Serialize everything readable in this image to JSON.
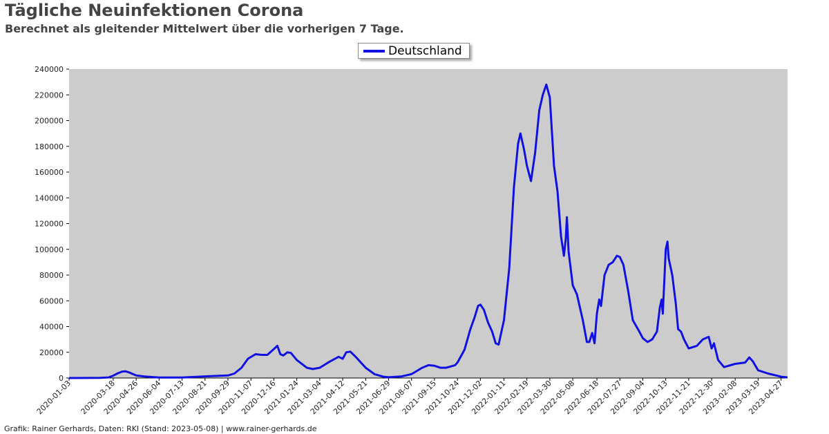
{
  "header": {
    "title": "Tägliche Neuinfektionen Corona",
    "subtitle": "Berechnet als gleitender Mittelwert über die vorherigen 7 Tage."
  },
  "footer": {
    "credit": "Grafik: Rainer Gerhards, Daten: RKI (Stand: 2023-05-08) | www.rainer-gerhards.de"
  },
  "chart_data": {
    "type": "line",
    "title": "Tägliche Neuinfektionen Corona",
    "subtitle": "Berechnet als gleitender Mittelwert über die vorherigen 7 Tage.",
    "xlabel": "",
    "ylabel": "",
    "ylim": [
      0,
      240000
    ],
    "xlim": [
      "2020-01-03",
      "2023-05-08"
    ],
    "grid": false,
    "legend_position": "top-center",
    "plot_background": "#cccccc",
    "y_ticks": [
      "0",
      "20000",
      "40000",
      "60000",
      "80000",
      "100000",
      "120000",
      "140000",
      "160000",
      "180000",
      "200000",
      "220000",
      "240000"
    ],
    "x_ticks": [
      "2020-01-03",
      "2020-03-18",
      "2020-04-26",
      "2020-06-04",
      "2020-07-13",
      "2020-08-21",
      "2020-09-29",
      "2020-11-07",
      "2020-12-16",
      "2021-01-24",
      "2021-03-04",
      "2021-04-12",
      "2021-05-21",
      "2021-06-29",
      "2021-08-07",
      "2021-09-15",
      "2021-10-24",
      "2021-12-02",
      "2022-01-11",
      "2022-02-19",
      "2022-03-30",
      "2022-05-08",
      "2022-06-18",
      "2022-07-27",
      "2022-09-04",
      "2022-10-13",
      "2022-11-21",
      "2022-12-30",
      "2023-02-08",
      "2023-03-19",
      "2023-04-27"
    ],
    "series": [
      {
        "name": "Deutschland",
        "color": "#1010e0",
        "points": [
          [
            "2020-01-03",
            0
          ],
          [
            "2020-02-25",
            100
          ],
          [
            "2020-03-10",
            500
          ],
          [
            "2020-03-18",
            1800
          ],
          [
            "2020-03-25",
            3500
          ],
          [
            "2020-04-02",
            5000
          ],
          [
            "2020-04-08",
            5200
          ],
          [
            "2020-04-15",
            4200
          ],
          [
            "2020-04-26",
            2000
          ],
          [
            "2020-05-10",
            1200
          ],
          [
            "2020-06-04",
            400
          ],
          [
            "2020-07-13",
            400
          ],
          [
            "2020-08-21",
            1300
          ],
          [
            "2020-09-29",
            2000
          ],
          [
            "2020-10-10",
            3500
          ],
          [
            "2020-10-22",
            8000
          ],
          [
            "2020-11-02",
            15000
          ],
          [
            "2020-11-15",
            18500
          ],
          [
            "2020-11-25",
            18000
          ],
          [
            "2020-12-05",
            18000
          ],
          [
            "2020-12-16",
            22500
          ],
          [
            "2020-12-22",
            25000
          ],
          [
            "2020-12-27",
            18500
          ],
          [
            "2021-01-01",
            17500
          ],
          [
            "2021-01-08",
            20000
          ],
          [
            "2021-01-14",
            19500
          ],
          [
            "2021-01-24",
            14000
          ],
          [
            "2021-02-10",
            8000
          ],
          [
            "2021-02-20",
            7000
          ],
          [
            "2021-03-04",
            8000
          ],
          [
            "2021-03-20",
            12500
          ],
          [
            "2021-04-05",
            16500
          ],
          [
            "2021-04-12",
            15000
          ],
          [
            "2021-04-18",
            20000
          ],
          [
            "2021-04-25",
            20500
          ],
          [
            "2021-05-05",
            16000
          ],
          [
            "2021-05-21",
            8000
          ],
          [
            "2021-06-05",
            3000
          ],
          [
            "2021-06-20",
            1000
          ],
          [
            "2021-06-29",
            600
          ],
          [
            "2021-07-20",
            1200
          ],
          [
            "2021-08-07",
            3000
          ],
          [
            "2021-08-25",
            8000
          ],
          [
            "2021-09-05",
            10000
          ],
          [
            "2021-09-15",
            9500
          ],
          [
            "2021-09-25",
            8000
          ],
          [
            "2021-10-05",
            8000
          ],
          [
            "2021-10-20",
            10000
          ],
          [
            "2021-10-24",
            12000
          ],
          [
            "2021-11-05",
            22000
          ],
          [
            "2021-11-15",
            38000
          ],
          [
            "2021-11-22",
            47000
          ],
          [
            "2021-11-28",
            56000
          ],
          [
            "2021-12-02",
            57000
          ],
          [
            "2021-12-08",
            53000
          ],
          [
            "2021-12-15",
            43000
          ],
          [
            "2021-12-22",
            36000
          ],
          [
            "2021-12-28",
            27000
          ],
          [
            "2022-01-02",
            26000
          ],
          [
            "2022-01-11",
            45000
          ],
          [
            "2022-01-20",
            85000
          ],
          [
            "2022-01-28",
            148000
          ],
          [
            "2022-02-04",
            182000
          ],
          [
            "2022-02-08",
            190000
          ],
          [
            "2022-02-14",
            178000
          ],
          [
            "2022-02-19",
            165000
          ],
          [
            "2022-02-26",
            153000
          ],
          [
            "2022-03-05",
            175000
          ],
          [
            "2022-03-12",
            208000
          ],
          [
            "2022-03-18",
            220000
          ],
          [
            "2022-03-24",
            228000
          ],
          [
            "2022-03-30",
            218000
          ],
          [
            "2022-04-06",
            165000
          ],
          [
            "2022-04-12",
            145000
          ],
          [
            "2022-04-18",
            110000
          ],
          [
            "2022-04-23",
            95000
          ],
          [
            "2022-04-26",
            108000
          ],
          [
            "2022-04-28",
            125000
          ],
          [
            "2022-05-01",
            98000
          ],
          [
            "2022-05-08",
            72000
          ],
          [
            "2022-05-15",
            65000
          ],
          [
            "2022-05-25",
            45000
          ],
          [
            "2022-06-01",
            28000
          ],
          [
            "2022-06-05",
            28000
          ],
          [
            "2022-06-10",
            35000
          ],
          [
            "2022-06-14",
            27000
          ],
          [
            "2022-06-18",
            50000
          ],
          [
            "2022-06-22",
            61000
          ],
          [
            "2022-06-25",
            56000
          ],
          [
            "2022-07-01",
            80000
          ],
          [
            "2022-07-08",
            88000
          ],
          [
            "2022-07-15",
            90000
          ],
          [
            "2022-07-22",
            95000
          ],
          [
            "2022-07-27",
            94000
          ],
          [
            "2022-08-02",
            88000
          ],
          [
            "2022-08-10",
            68000
          ],
          [
            "2022-08-18",
            45000
          ],
          [
            "2022-08-28",
            37000
          ],
          [
            "2022-09-04",
            31000
          ],
          [
            "2022-09-12",
            28000
          ],
          [
            "2022-09-20",
            30000
          ],
          [
            "2022-09-28",
            36000
          ],
          [
            "2022-10-03",
            55000
          ],
          [
            "2022-10-06",
            61000
          ],
          [
            "2022-10-08",
            50000
          ],
          [
            "2022-10-11",
            80000
          ],
          [
            "2022-10-13",
            100000
          ],
          [
            "2022-10-16",
            106000
          ],
          [
            "2022-10-18",
            93000
          ],
          [
            "2022-10-24",
            80000
          ],
          [
            "2022-10-30",
            58000
          ],
          [
            "2022-11-03",
            38000
          ],
          [
            "2022-11-08",
            36000
          ],
          [
            "2022-11-13",
            30000
          ],
          [
            "2022-11-21",
            23000
          ],
          [
            "2022-12-05",
            25000
          ],
          [
            "2022-12-15",
            30000
          ],
          [
            "2022-12-25",
            32000
          ],
          [
            "2022-12-30",
            23000
          ],
          [
            "2023-01-03",
            27000
          ],
          [
            "2023-01-10",
            14000
          ],
          [
            "2023-01-20",
            8500
          ],
          [
            "2023-02-08",
            11000
          ],
          [
            "2023-02-25",
            12000
          ],
          [
            "2023-03-04",
            16000
          ],
          [
            "2023-03-10",
            13000
          ],
          [
            "2023-03-19",
            6000
          ],
          [
            "2023-04-05",
            3500
          ],
          [
            "2023-04-27",
            1000
          ],
          [
            "2023-05-08",
            500
          ]
        ]
      }
    ]
  }
}
